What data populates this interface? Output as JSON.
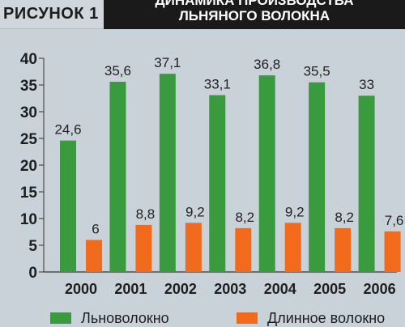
{
  "figure_label": "РИСУНОК 1",
  "title_line1": "ДИНАМИКА ПРОИЗВОДСТВА",
  "title_line2": "ЛЬНЯНОГО ВОЛОКНА",
  "colors": {
    "series1": "#3a9a3e",
    "series2": "#f26a1b"
  },
  "chart_data": {
    "type": "bar",
    "categories": [
      "2000",
      "2001",
      "2002",
      "2003",
      "2004",
      "2005",
      "2006"
    ],
    "series": [
      {
        "name": "Льноволокно",
        "values": [
          24.6,
          35.6,
          37.1,
          33.1,
          36.8,
          35.5,
          33
        ],
        "labels": [
          "24,6",
          "35,6",
          "37,1",
          "33,1",
          "36,8",
          "35,5",
          "33"
        ]
      },
      {
        "name": "Длинное волокно",
        "values": [
          6,
          8.8,
          9.2,
          8.2,
          9.2,
          8.2,
          7.6
        ],
        "labels": [
          "6",
          "8,8",
          "9,2",
          "8,2",
          "9,2",
          "8,2",
          "7,6"
        ]
      }
    ],
    "yticks": [
      "0",
      "5",
      "10",
      "15",
      "20",
      "25",
      "30",
      "35",
      "40"
    ],
    "ylim": [
      0,
      40
    ],
    "legend_position": "bottom"
  }
}
